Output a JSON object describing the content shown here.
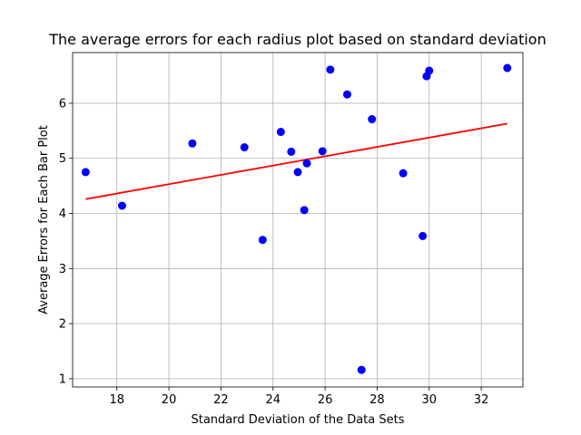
{
  "chart_data": {
    "type": "scatter",
    "title": "The average errors for each radius plot based on standard deviation",
    "xlabel": "Standard Deviation of the Data Sets",
    "ylabel": "Average Errors for Each Bar Plot",
    "xlim": [
      16.3,
      33.6
    ],
    "ylim": [
      0.85,
      6.92
    ],
    "xticks": [
      18,
      20,
      22,
      24,
      26,
      28,
      30,
      32
    ],
    "yticks": [
      1,
      2,
      3,
      4,
      5,
      6
    ],
    "grid": true,
    "point_color": "#0000ff",
    "line_color": "#ff0000",
    "points": [
      {
        "x": 16.8,
        "y": 4.75
      },
      {
        "x": 18.2,
        "y": 4.14
      },
      {
        "x": 20.9,
        "y": 5.27
      },
      {
        "x": 22.9,
        "y": 5.2
      },
      {
        "x": 23.6,
        "y": 3.52
      },
      {
        "x": 24.3,
        "y": 5.48
      },
      {
        "x": 24.7,
        "y": 5.12
      },
      {
        "x": 24.95,
        "y": 4.75
      },
      {
        "x": 25.2,
        "y": 4.06
      },
      {
        "x": 25.3,
        "y": 4.91
      },
      {
        "x": 25.9,
        "y": 5.13
      },
      {
        "x": 26.2,
        "y": 6.61
      },
      {
        "x": 26.85,
        "y": 6.16
      },
      {
        "x": 27.4,
        "y": 1.16
      },
      {
        "x": 27.8,
        "y": 5.71
      },
      {
        "x": 29.0,
        "y": 4.73
      },
      {
        "x": 29.75,
        "y": 3.59
      },
      {
        "x": 29.9,
        "y": 6.49
      },
      {
        "x": 30.0,
        "y": 6.59
      },
      {
        "x": 33.0,
        "y": 6.64
      }
    ],
    "trend_line": {
      "x": [
        16.8,
        33.0
      ],
      "y": [
        4.26,
        5.63
      ]
    }
  }
}
